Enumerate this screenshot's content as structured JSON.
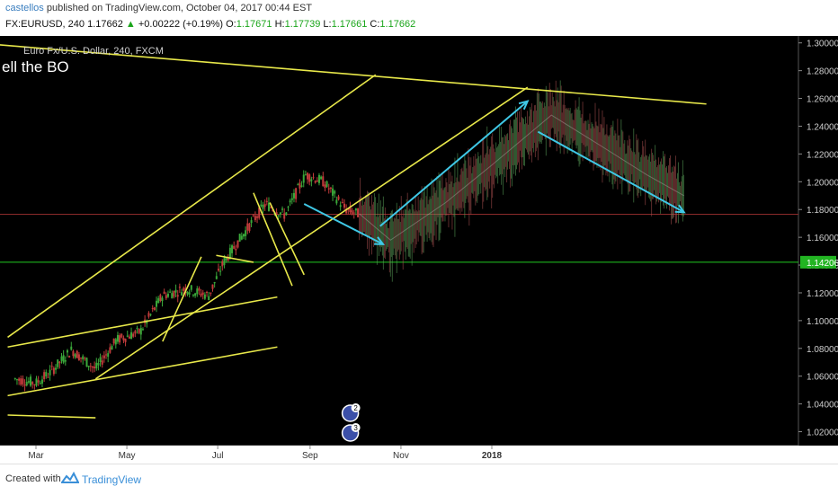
{
  "header": {
    "author": "castellos",
    "published_text": "published on TradingView.com, October 04, 2017 00:44 EST",
    "symbol": "FX:EURUSD, 240",
    "last": "1.17662",
    "arrow": "▲",
    "change": "+0.00222 (+0.19%)",
    "o_label": "O:",
    "o_value": "1.17671",
    "h_label": "H:",
    "h_value": "1.17739",
    "l_label": "L:",
    "l_value": "1.17661",
    "c_label": "C:",
    "c_value": "1.17662"
  },
  "footer": {
    "created_with": "Created with",
    "brand": "TradingView"
  },
  "chart_data": {
    "type": "candlestick",
    "symbol_description": "Euro Fx/U.S. Dollar, 240, FXCM",
    "annotation": "ell the BO",
    "y_ticks": [
      "1.30000",
      "1.28000",
      "1.26000",
      "1.24000",
      "1.22000",
      "1.20000",
      "1.18000",
      "1.16000",
      "1.14000",
      "1.12000",
      "1.10000",
      "1.08000",
      "1.06000",
      "1.04000",
      "1.02000"
    ],
    "x_ticks": [
      "Mar",
      "May",
      "Jul",
      "Sep",
      "Nov",
      "2018"
    ],
    "ylim": [
      1.01,
      1.305
    ],
    "highlighted_price": "1.14206",
    "price_lines": [
      {
        "value": 1.14206,
        "color": "#22c922"
      },
      {
        "value": 1.17662,
        "color": "#8b2a2a"
      }
    ],
    "historical_series": [
      {
        "x": "Feb 15",
        "y": 1.058
      },
      {
        "x": "Mar 1",
        "y": 1.055
      },
      {
        "x": "Mar 10",
        "y": 1.062
      },
      {
        "x": "Mar 25",
        "y": 1.079
      },
      {
        "x": "Apr 10",
        "y": 1.065
      },
      {
        "x": "Apr 24",
        "y": 1.086
      },
      {
        "x": "May 10",
        "y": 1.092
      },
      {
        "x": "May 25",
        "y": 1.118
      },
      {
        "x": "Jun 10",
        "y": 1.123
      },
      {
        "x": "Jun 25",
        "y": 1.118
      },
      {
        "x": "Jul 5",
        "y": 1.142
      },
      {
        "x": "Jul 20",
        "y": 1.165
      },
      {
        "x": "Aug 2",
        "y": 1.184
      },
      {
        "x": "Aug 15",
        "y": 1.176
      },
      {
        "x": "Aug 29",
        "y": 1.205
      },
      {
        "x": "Sep 10",
        "y": 1.2
      },
      {
        "x": "Sep 25",
        "y": 1.18
      },
      {
        "x": "Oct 4",
        "y": 1.1766
      }
    ],
    "projection_series": [
      {
        "x": "Oct 4",
        "y": 1.177
      },
      {
        "x": "Oct 25",
        "y": 1.158
      },
      {
        "x": "Dec 1",
        "y": 1.185
      },
      {
        "x": "Jan 1",
        "y": 1.212
      },
      {
        "x": "Feb 10",
        "y": 1.248
      },
      {
        "x": "Mar 15",
        "y": 1.226
      },
      {
        "x": "Apr 15",
        "y": 1.205
      },
      {
        "x": "May 10",
        "y": 1.19
      }
    ],
    "trend_lines": [
      {
        "color": "#e8e84a",
        "from": {
          "x": "Jan 20",
          "y": 1.3
        },
        "to": {
          "x": "May 25",
          "y": 1.256
        }
      },
      {
        "color": "#e8e84a",
        "from": {
          "x": "Feb 10",
          "y": 1.088
        },
        "to": {
          "x": "Oct 15",
          "y": 1.277
        }
      },
      {
        "color": "#e8e84a",
        "from": {
          "x": "Feb 10",
          "y": 1.046
        },
        "to": {
          "x": "Aug 10",
          "y": 1.081
        }
      },
      {
        "color": "#e8e84a",
        "from": {
          "x": "Feb 10",
          "y": 1.081
        },
        "to": {
          "x": "Aug 10",
          "y": 1.117
        }
      },
      {
        "color": "#e8e84a",
        "from": {
          "x": "Apr 10",
          "y": 1.058
        },
        "to": {
          "x": "Jan 25",
          "y": 1.268
        }
      },
      {
        "color": "#e8e84a",
        "from": {
          "x": "Feb 10",
          "y": 1.032
        },
        "to": {
          "x": "Apr 10",
          "y": 1.03
        }
      },
      {
        "color": "#e8e84a",
        "from": {
          "x": "May 25",
          "y": 1.085
        },
        "to": {
          "x": "Jun 20",
          "y": 1.146
        }
      },
      {
        "color": "#e8e84a",
        "from": {
          "x": "Jun 30",
          "y": 1.147
        },
        "to": {
          "x": "Jul 25",
          "y": 1.142
        }
      },
      {
        "color": "#e8e84a",
        "from": {
          "x": "Jul 25",
          "y": 1.192
        },
        "to": {
          "x": "Aug 20",
          "y": 1.125
        }
      },
      {
        "color": "#e8e84a",
        "from": {
          "x": "Aug 5",
          "y": 1.185
        },
        "to": {
          "x": "Aug 28",
          "y": 1.133
        }
      }
    ],
    "projection_arrows": [
      {
        "color": "#3fc8e6",
        "from": {
          "x": "Aug 28",
          "y": 1.184
        },
        "to": {
          "x": "Oct 20",
          "y": 1.155
        }
      },
      {
        "color": "#3fc8e6",
        "from": {
          "x": "Oct 18",
          "y": 1.168
        },
        "to": {
          "x": "Jan 25",
          "y": 1.258
        }
      },
      {
        "color": "#3fc8e6",
        "from": {
          "x": "Feb 1",
          "y": 1.236
        },
        "to": {
          "x": "May 10",
          "y": 1.178
        }
      }
    ],
    "event_markers": [
      {
        "x": "Sep 28",
        "label": "2"
      },
      {
        "x": "Sep 28",
        "label": "3"
      }
    ]
  }
}
